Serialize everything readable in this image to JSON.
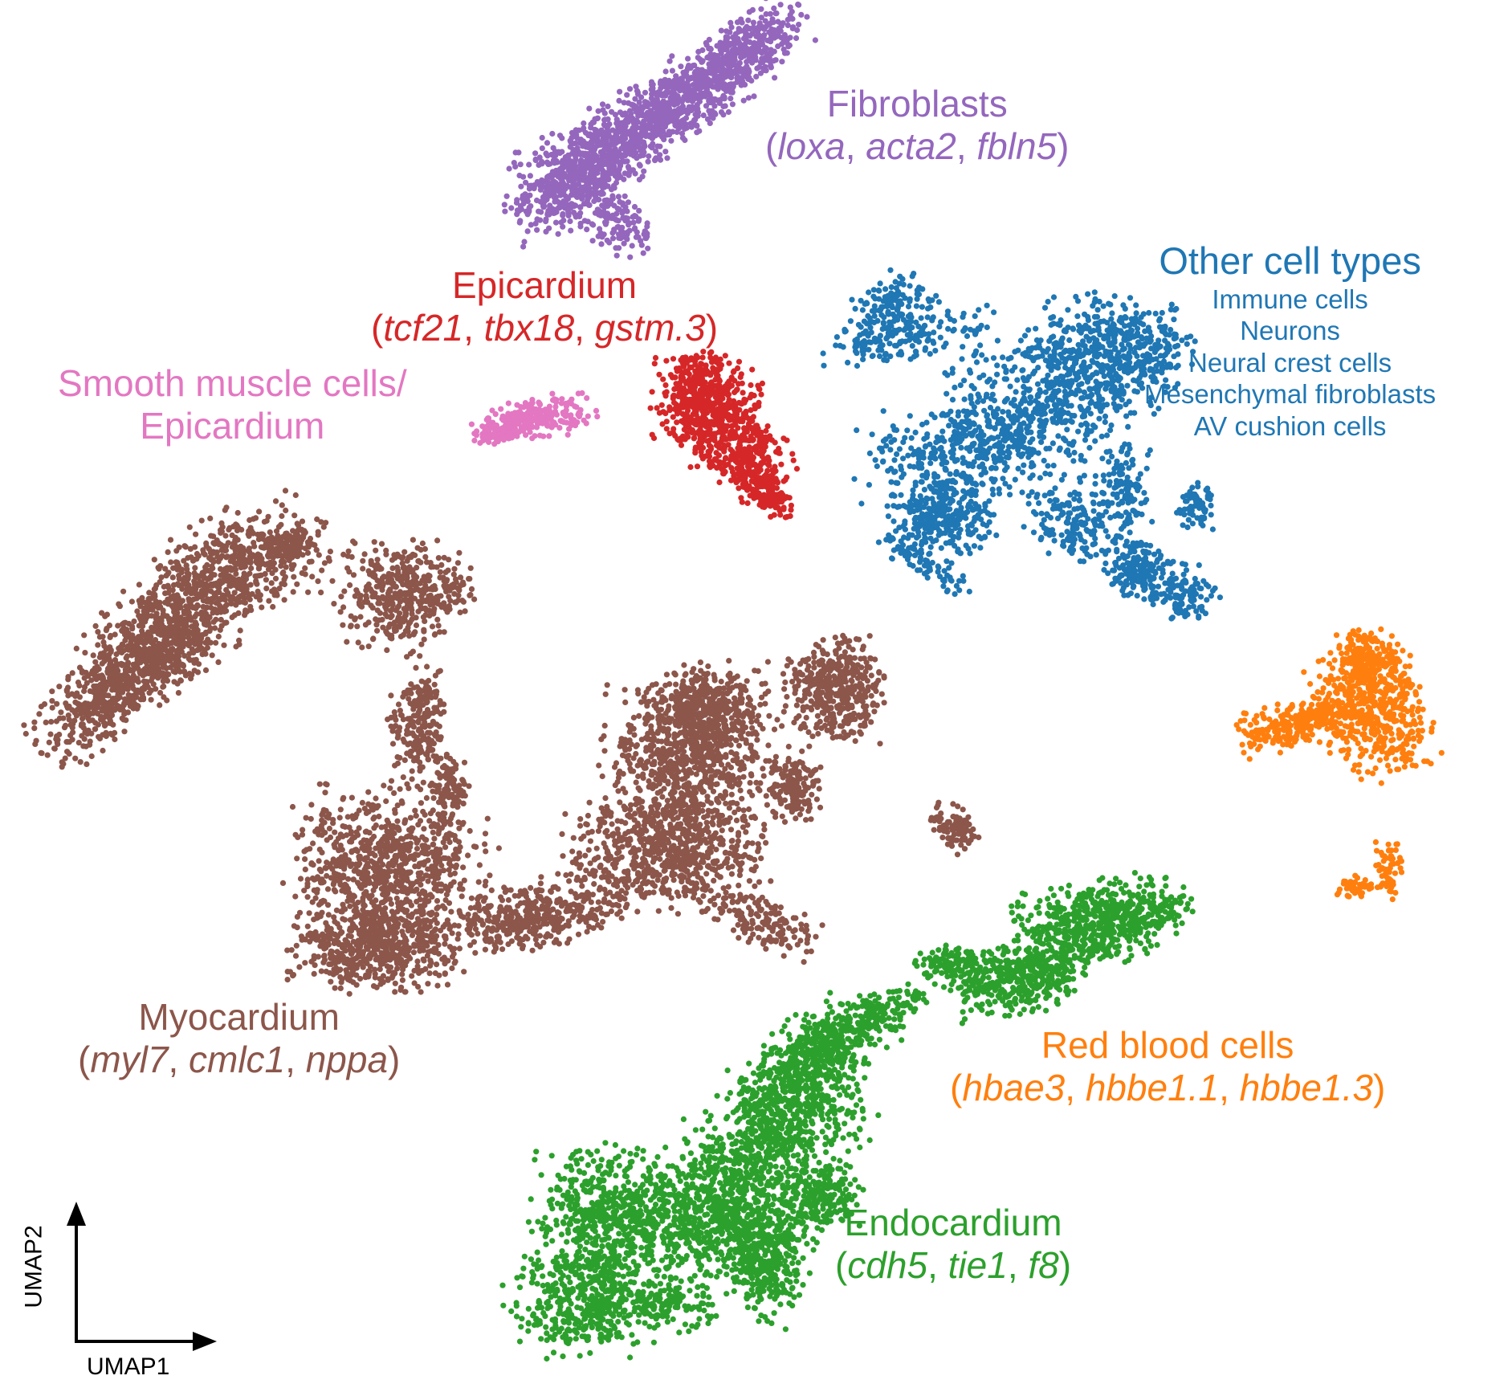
{
  "chart_data": {
    "type": "scatter",
    "title": "",
    "xlabel": "UMAP1",
    "ylabel": "UMAP2",
    "grid": false,
    "legend": "none",
    "clusters": [
      {
        "id": "myocardium",
        "name": "Myocardium",
        "genes": [
          "myl7",
          "cmlc1",
          "nppa"
        ],
        "color": "#8c564b"
      },
      {
        "id": "endocardium",
        "name": "Endocardium",
        "genes": [
          "cdh5",
          "tie1",
          "f8"
        ],
        "color": "#2ca02c"
      },
      {
        "id": "epicardium",
        "name": "Epicardium",
        "genes": [
          "tcf21",
          "tbx18",
          "gstm.3"
        ],
        "color": "#d62728"
      },
      {
        "id": "fibroblasts",
        "name": "Fibroblasts",
        "genes": [
          "loxa",
          "acta2",
          "fbln5"
        ],
        "color": "#9467bd"
      },
      {
        "id": "smooth-muscle",
        "name": "Smooth muscle cells/",
        "name2": "Epicardium",
        "genes": [],
        "color": "#e377c2"
      },
      {
        "id": "red-blood",
        "name": "Red blood cells",
        "genes": [
          "hbae3",
          "hbbe1.1",
          "hbbe1.3"
        ],
        "color": "#ff7f0e"
      },
      {
        "id": "other",
        "name": "Other cell types",
        "genes": [],
        "color": "#1f77b4",
        "subtypes": [
          "Immune cells",
          "Neurons",
          "Neural crest cells",
          "Mesenchymal fibroblasts",
          "AV cushion cells"
        ]
      }
    ]
  }
}
